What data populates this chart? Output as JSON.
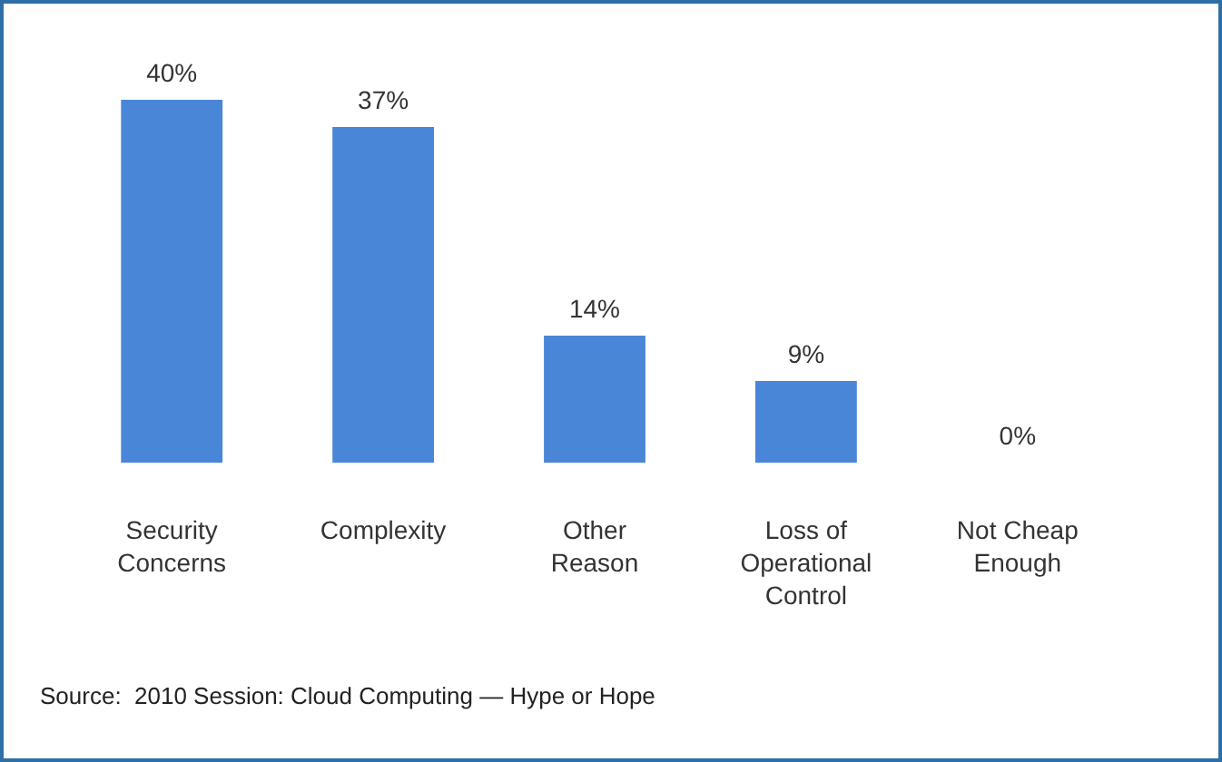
{
  "chart_data": {
    "type": "bar",
    "categories": [
      "Security Concerns",
      "Complexity",
      "Other Reason",
      "Loss of Operational Control",
      "Not Cheap Enough"
    ],
    "values": [
      40,
      37,
      14,
      9,
      0
    ],
    "color": "#4a86d8",
    "data_labels": true,
    "value_labels": [
      "40%",
      "37%",
      "14%",
      "9%",
      "0%"
    ],
    "annotations": [
      "Source:  2010 Session: Cloud Computing — Hype or Hope"
    ]
  }
}
